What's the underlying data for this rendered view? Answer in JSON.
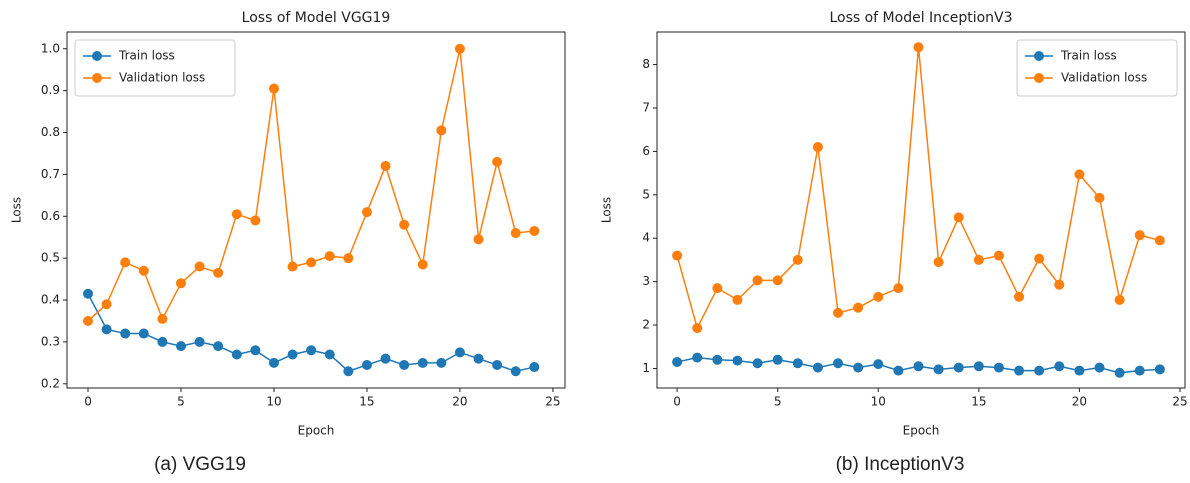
{
  "chart_data": [
    {
      "type": "line",
      "title": "Loss of Model VGG19",
      "x_label": "Epoch",
      "y_label": "Loss",
      "caption": "(a)  VGG19",
      "x": [
        0,
        1,
        2,
        3,
        4,
        5,
        6,
        7,
        8,
        9,
        10,
        11,
        12,
        13,
        14,
        15,
        16,
        17,
        18,
        19,
        20,
        21,
        22,
        23,
        24
      ],
      "series": [
        {
          "name": "Train loss",
          "color": "#1f77b4",
          "values": [
            0.415,
            0.33,
            0.32,
            0.32,
            0.3,
            0.29,
            0.3,
            0.29,
            0.27,
            0.28,
            0.25,
            0.27,
            0.28,
            0.27,
            0.23,
            0.245,
            0.26,
            0.245,
            0.25,
            0.25,
            0.275,
            0.26,
            0.245,
            0.23,
            0.24
          ]
        },
        {
          "name": "Validation loss",
          "color": "#ff7f0e",
          "values": [
            0.35,
            0.39,
            0.49,
            0.47,
            0.355,
            0.44,
            0.48,
            0.465,
            0.605,
            0.59,
            0.905,
            0.48,
            0.49,
            0.505,
            0.5,
            0.61,
            0.72,
            0.58,
            0.485,
            0.805,
            1.0,
            0.545,
            0.73,
            0.56,
            0.565
          ]
        }
      ],
      "xlim": [
        -1.13,
        25.65
      ],
      "xticks": [
        0,
        5,
        10,
        15,
        20,
        25
      ],
      "ylim": [
        0.19,
        1.04
      ],
      "yticks": [
        0.2,
        0.3,
        0.4,
        0.5,
        0.6,
        0.7,
        0.8,
        0.9,
        {
          "value": 1,
          "label": "1.0"
        }
      ],
      "legend": "upper left"
    },
    {
      "type": "line",
      "title": "Loss of Model InceptionV3",
      "x_label": "Epoch",
      "y_label": "Loss",
      "caption": "(b)  InceptionV3",
      "x": [
        0,
        1,
        2,
        3,
        4,
        5,
        6,
        7,
        8,
        9,
        10,
        11,
        12,
        13,
        14,
        15,
        16,
        17,
        18,
        19,
        20,
        21,
        22,
        23,
        24
      ],
      "series": [
        {
          "name": "Train loss",
          "color": "#1f77b4",
          "values": [
            1.15,
            1.25,
            1.2,
            1.18,
            1.12,
            1.2,
            1.12,
            1.02,
            1.12,
            1.02,
            1.1,
            0.95,
            1.05,
            0.98,
            1.02,
            1.05,
            1.02,
            0.95,
            0.95,
            1.05,
            0.95,
            1.02,
            0.9,
            0.95,
            0.98
          ]
        },
        {
          "name": "Validation loss",
          "color": "#ff7f0e",
          "values": [
            3.6,
            1.93,
            2.85,
            2.58,
            3.03,
            3.03,
            3.5,
            6.1,
            2.28,
            2.4,
            2.65,
            2.85,
            8.4,
            3.45,
            4.48,
            3.5,
            3.6,
            2.65,
            3.53,
            2.93,
            5.47,
            4.93,
            2.58,
            4.07,
            3.95
          ]
        }
      ],
      "xlim": [
        -1,
        25.25
      ],
      "xticks": [
        0,
        5,
        10,
        15,
        20,
        25
      ],
      "ylim": [
        0.55,
        8.75
      ],
      "yticks": [
        1,
        2,
        3,
        4,
        5,
        6,
        7,
        8
      ],
      "legend": "upper right"
    }
  ]
}
